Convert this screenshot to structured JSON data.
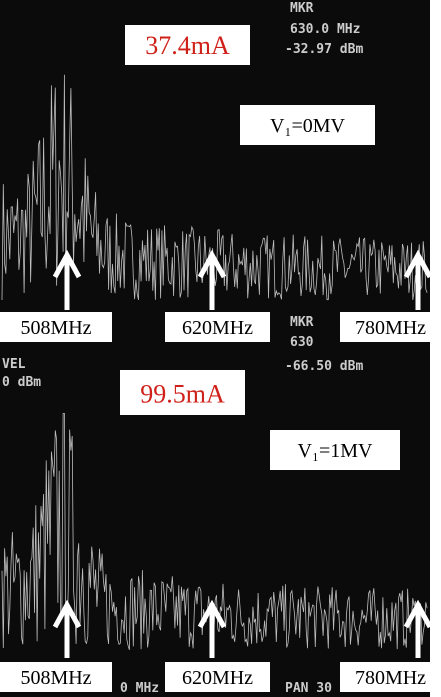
{
  "panels": [
    {
      "current": "37.4mA",
      "voltage": "V₁=0MV",
      "marker": {
        "label": "MKR",
        "frequency": "630.0  MHz",
        "level": "-32.97 dBm"
      },
      "arrows": [
        "508MHz",
        "620MHz",
        "780MHz"
      ]
    },
    {
      "current": "99.5mA",
      "voltage": "V₁=1MV",
      "marker": {
        "label": "MKR",
        "frequency": "630",
        "level": "-66.50 dBm"
      },
      "reference": [
        "VEL",
        "0 dBm"
      ],
      "footer": [
        "0 MHz",
        "PAN 30"
      ],
      "arrows": [
        "508MHz",
        "620MHz",
        "780MHz"
      ]
    }
  ]
}
